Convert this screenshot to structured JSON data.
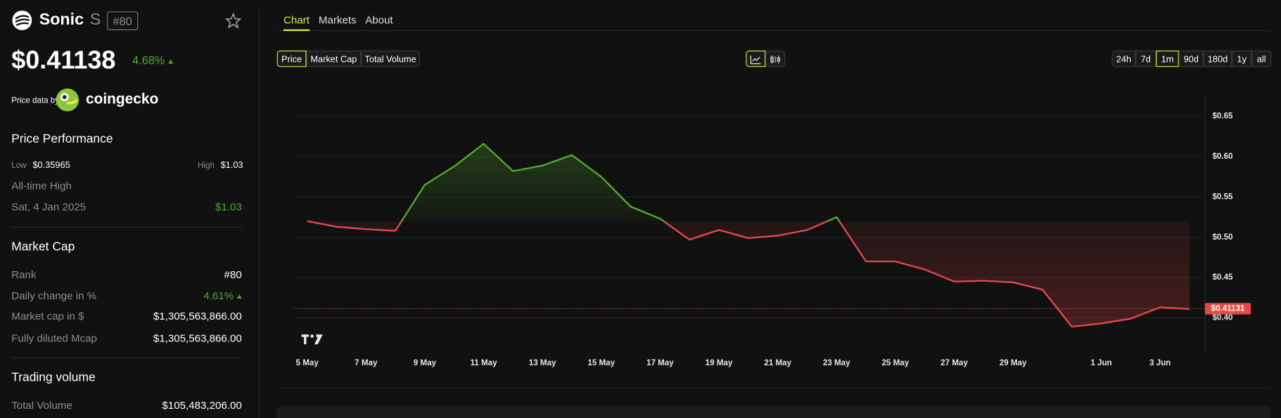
{
  "header": {
    "name": "Sonic",
    "symbol": "S",
    "rank": "#80"
  },
  "price": {
    "value": "$0.41138",
    "change": "4.68%"
  },
  "source": {
    "label": "Price data by",
    "brand": "coingecko"
  },
  "performance": {
    "title": "Price Performance",
    "low_label": "Low",
    "low": "$0.35965",
    "high_label": "High",
    "high": "$1.03",
    "ath_label": "All-time High",
    "ath_date": "Sat, 4 Jan 2025",
    "ath": "$1.03"
  },
  "market_cap": {
    "title": "Market Cap",
    "rows": [
      [
        "Rank",
        "#80"
      ],
      [
        "Daily change in %",
        "4.61%"
      ],
      [
        "Market cap in $",
        "$1,305,563,866.00"
      ],
      [
        "Fully diluted Mcap",
        "$1,305,563,866.00"
      ]
    ]
  },
  "trading_volume": {
    "title": "Trading volume",
    "rows": [
      [
        "Total Volume",
        "$105,483,206.00"
      ]
    ]
  },
  "tabs": [
    "Chart",
    "Markets",
    "About"
  ],
  "metric_buttons": [
    "Price",
    "Market Cap",
    "Total Volume"
  ],
  "range_buttons": [
    "24h",
    "7d",
    "1m",
    "90d",
    "180d",
    "1y",
    "all"
  ],
  "chart_data": {
    "type": "line",
    "categories": [
      "5 May",
      null,
      "7 May",
      null,
      "9 May",
      null,
      "11 May",
      null,
      "13 May",
      null,
      "15 May",
      null,
      "17 May",
      null,
      "19 May",
      null,
      "21 May",
      null,
      "23 May",
      null,
      "25 May",
      null,
      "27 May",
      null,
      "29 May",
      null,
      null,
      "1 Jun",
      null,
      "3 Jun",
      null
    ],
    "values": [
      0.52,
      0.513,
      0.51,
      0.508,
      0.565,
      0.588,
      0.616,
      0.582,
      0.589,
      0.602,
      0.575,
      0.538,
      0.523,
      0.497,
      0.509,
      0.499,
      0.502,
      0.509,
      0.525,
      0.47,
      0.47,
      0.46,
      0.445,
      0.446,
      0.444,
      0.435,
      0.389,
      0.393,
      0.399,
      0.413,
      0.411
    ],
    "up_color": "#4fae2a",
    "down_color": "#e8484a",
    "ylim": [
      0.356,
      0.678
    ],
    "yticks": [
      {
        "value": 0.4,
        "label": "$0.40"
      },
      {
        "value": 0.45,
        "label": "$0.45"
      },
      {
        "value": 0.5,
        "label": "$0.50"
      },
      {
        "value": 0.55,
        "label": "$0.55"
      },
      {
        "value": 0.6,
        "label": "$0.60"
      },
      {
        "value": 0.65,
        "label": "$0.65"
      }
    ],
    "grid": true,
    "price_line": {
      "value": 0.41131,
      "label": "$0.41131"
    }
  }
}
